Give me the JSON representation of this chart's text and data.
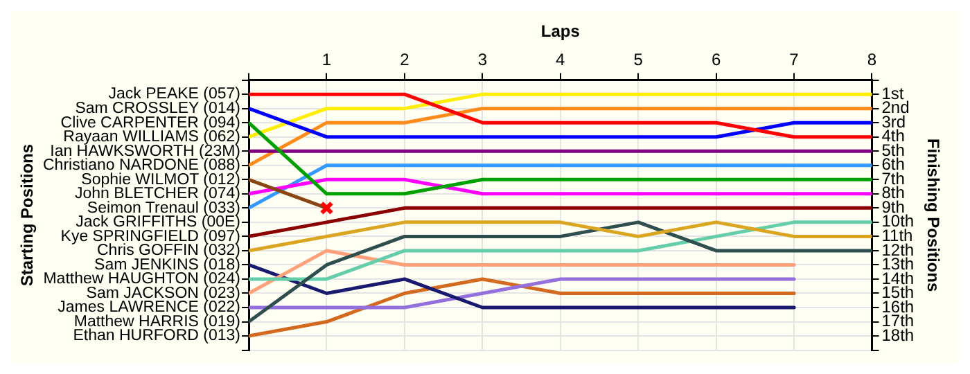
{
  "chart_data": {
    "type": "line",
    "xlabel": "Laps",
    "annotations": [
      "Starting Positions"
    ],
    "y2label": "Finishing Positions",
    "x": [
      0,
      1,
      2,
      3,
      4,
      5,
      6,
      7,
      8
    ],
    "xlim": [
      0,
      8
    ],
    "xticks": [
      {
        "value": 0,
        "label": null
      },
      1,
      2,
      3,
      4,
      5,
      6,
      7,
      8
    ],
    "y_categories": [
      "Jack PEAKE (057)",
      "Sam CROSSLEY (014)",
      "Clive CARPENTER (094)",
      "Rayaan WILLIAMS (062)",
      "Ian HAWKSWORTH (23M)",
      "Christiano NARDONE (088)",
      "Sophie WILMOT (012)",
      "John BLETCHER (074)",
      "Seimon Trenaul (033)",
      "Jack GRIFFITHS (00E)",
      "Kye SPRINGFIELD (097)",
      "Chris GOFFIN (032)",
      "Sam JENKINS (018)",
      "Matthew HAUGHTON (024)",
      "Sam JACKSON (023)",
      "James LAWRENCE (022)",
      "Matthew HARRIS (019)",
      "Ethan HURFORD (013)"
    ],
    "y2lim": [
      19,
      0
    ],
    "y2ticks": [
      {
        "value": 0,
        "label": null
      },
      {
        "value": 1,
        "label": "1st"
      },
      {
        "value": 2,
        "label": "2nd"
      },
      {
        "value": 3,
        "label": "3rd"
      },
      {
        "value": 4,
        "label": "4th"
      },
      {
        "value": 5,
        "label": "5th"
      },
      {
        "value": 6,
        "label": "6th"
      },
      {
        "value": 7,
        "label": "7th"
      },
      {
        "value": 8,
        "label": "8th"
      },
      {
        "value": 9,
        "label": "9th"
      },
      {
        "value": 10,
        "label": "10th"
      },
      {
        "value": 11,
        "label": "11th"
      },
      {
        "value": 12,
        "label": "12th"
      },
      {
        "value": 13,
        "label": "13th"
      },
      {
        "value": 14,
        "label": "14th"
      },
      {
        "value": 15,
        "label": "15th"
      },
      {
        "value": 16,
        "label": "16th"
      },
      {
        "value": 17,
        "label": "17th"
      },
      {
        "value": 18,
        "label": "18th"
      },
      {
        "value": 19,
        "label": null
      }
    ],
    "grid": true,
    "marker": "none",
    "line_style": "solid",
    "series": [
      {
        "axis": "y2",
        "color": "#ff0000",
        "values": [
          1,
          1,
          1,
          3,
          3,
          3,
          3,
          4,
          4
        ]
      },
      {
        "axis": "y2",
        "color": "#0000ff",
        "values": [
          2,
          4,
          4,
          4,
          4,
          4,
          4,
          3,
          3
        ]
      },
      {
        "axis": "y2",
        "color": "#00a000",
        "values": [
          3,
          8,
          8,
          7,
          7,
          7,
          7,
          7,
          7
        ]
      },
      {
        "axis": "y2",
        "color": "#ffee00",
        "values": [
          4,
          2,
          2,
          1,
          1,
          1,
          1,
          1,
          1
        ]
      },
      {
        "axis": "y2",
        "color": "#800080",
        "values": [
          5,
          5,
          5,
          5,
          5,
          5,
          5,
          5,
          5
        ]
      },
      {
        "axis": "y2",
        "color": "#ff8c1a",
        "values": [
          6,
          3,
          3,
          2,
          2,
          2,
          2,
          2,
          2
        ]
      },
      {
        "axis": "y2",
        "color": "#8b4513",
        "values": [
          7,
          9,
          null,
          null,
          null,
          null,
          null,
          null,
          null
        ]
      },
      {
        "axis": "y2",
        "color": "#ff00ff",
        "values": [
          8,
          7,
          7,
          8,
          8,
          8,
          8,
          8,
          8
        ]
      },
      {
        "axis": "y2",
        "color": "#3399ff",
        "values": [
          9,
          6,
          6,
          6,
          6,
          6,
          6,
          6,
          6
        ]
      },
      {
        "axis": "y2",
        "color": "#8b0000",
        "values": [
          11,
          10,
          9,
          9,
          9,
          9,
          9,
          9,
          9
        ]
      },
      {
        "axis": "y2",
        "color": "#daa520",
        "values": [
          12,
          11,
          10,
          10,
          10,
          11,
          10,
          11,
          11
        ]
      },
      {
        "axis": "y2",
        "color": "#2f4f4f",
        "values": [
          17,
          13,
          11,
          11,
          11,
          10,
          12,
          12,
          12
        ]
      },
      {
        "axis": "y2",
        "color": "#66cdaa",
        "values": [
          14,
          14,
          12,
          12,
          12,
          12,
          11,
          10,
          10
        ]
      },
      {
        "axis": "y2",
        "color": "#ffa07a",
        "values": [
          15,
          12,
          13,
          13,
          13,
          13,
          13,
          13,
          null
        ]
      },
      {
        "axis": "y2",
        "color": "#191970",
        "values": [
          13,
          15,
          14,
          16,
          16,
          16,
          16,
          16,
          null
        ]
      },
      {
        "axis": "y2",
        "color": "#9370db",
        "values": [
          16,
          16,
          16,
          15,
          14,
          14,
          14,
          14,
          null
        ]
      },
      {
        "axis": "y2",
        "color": "#d2691e",
        "values": [
          18,
          17,
          15,
          14,
          15,
          15,
          15,
          15,
          null
        ]
      },
      {
        "axis": "y2",
        "type": "scatter",
        "marker": "cross",
        "color": "#ff0000",
        "x": [
          1
        ],
        "values": [
          9
        ]
      }
    ]
  }
}
